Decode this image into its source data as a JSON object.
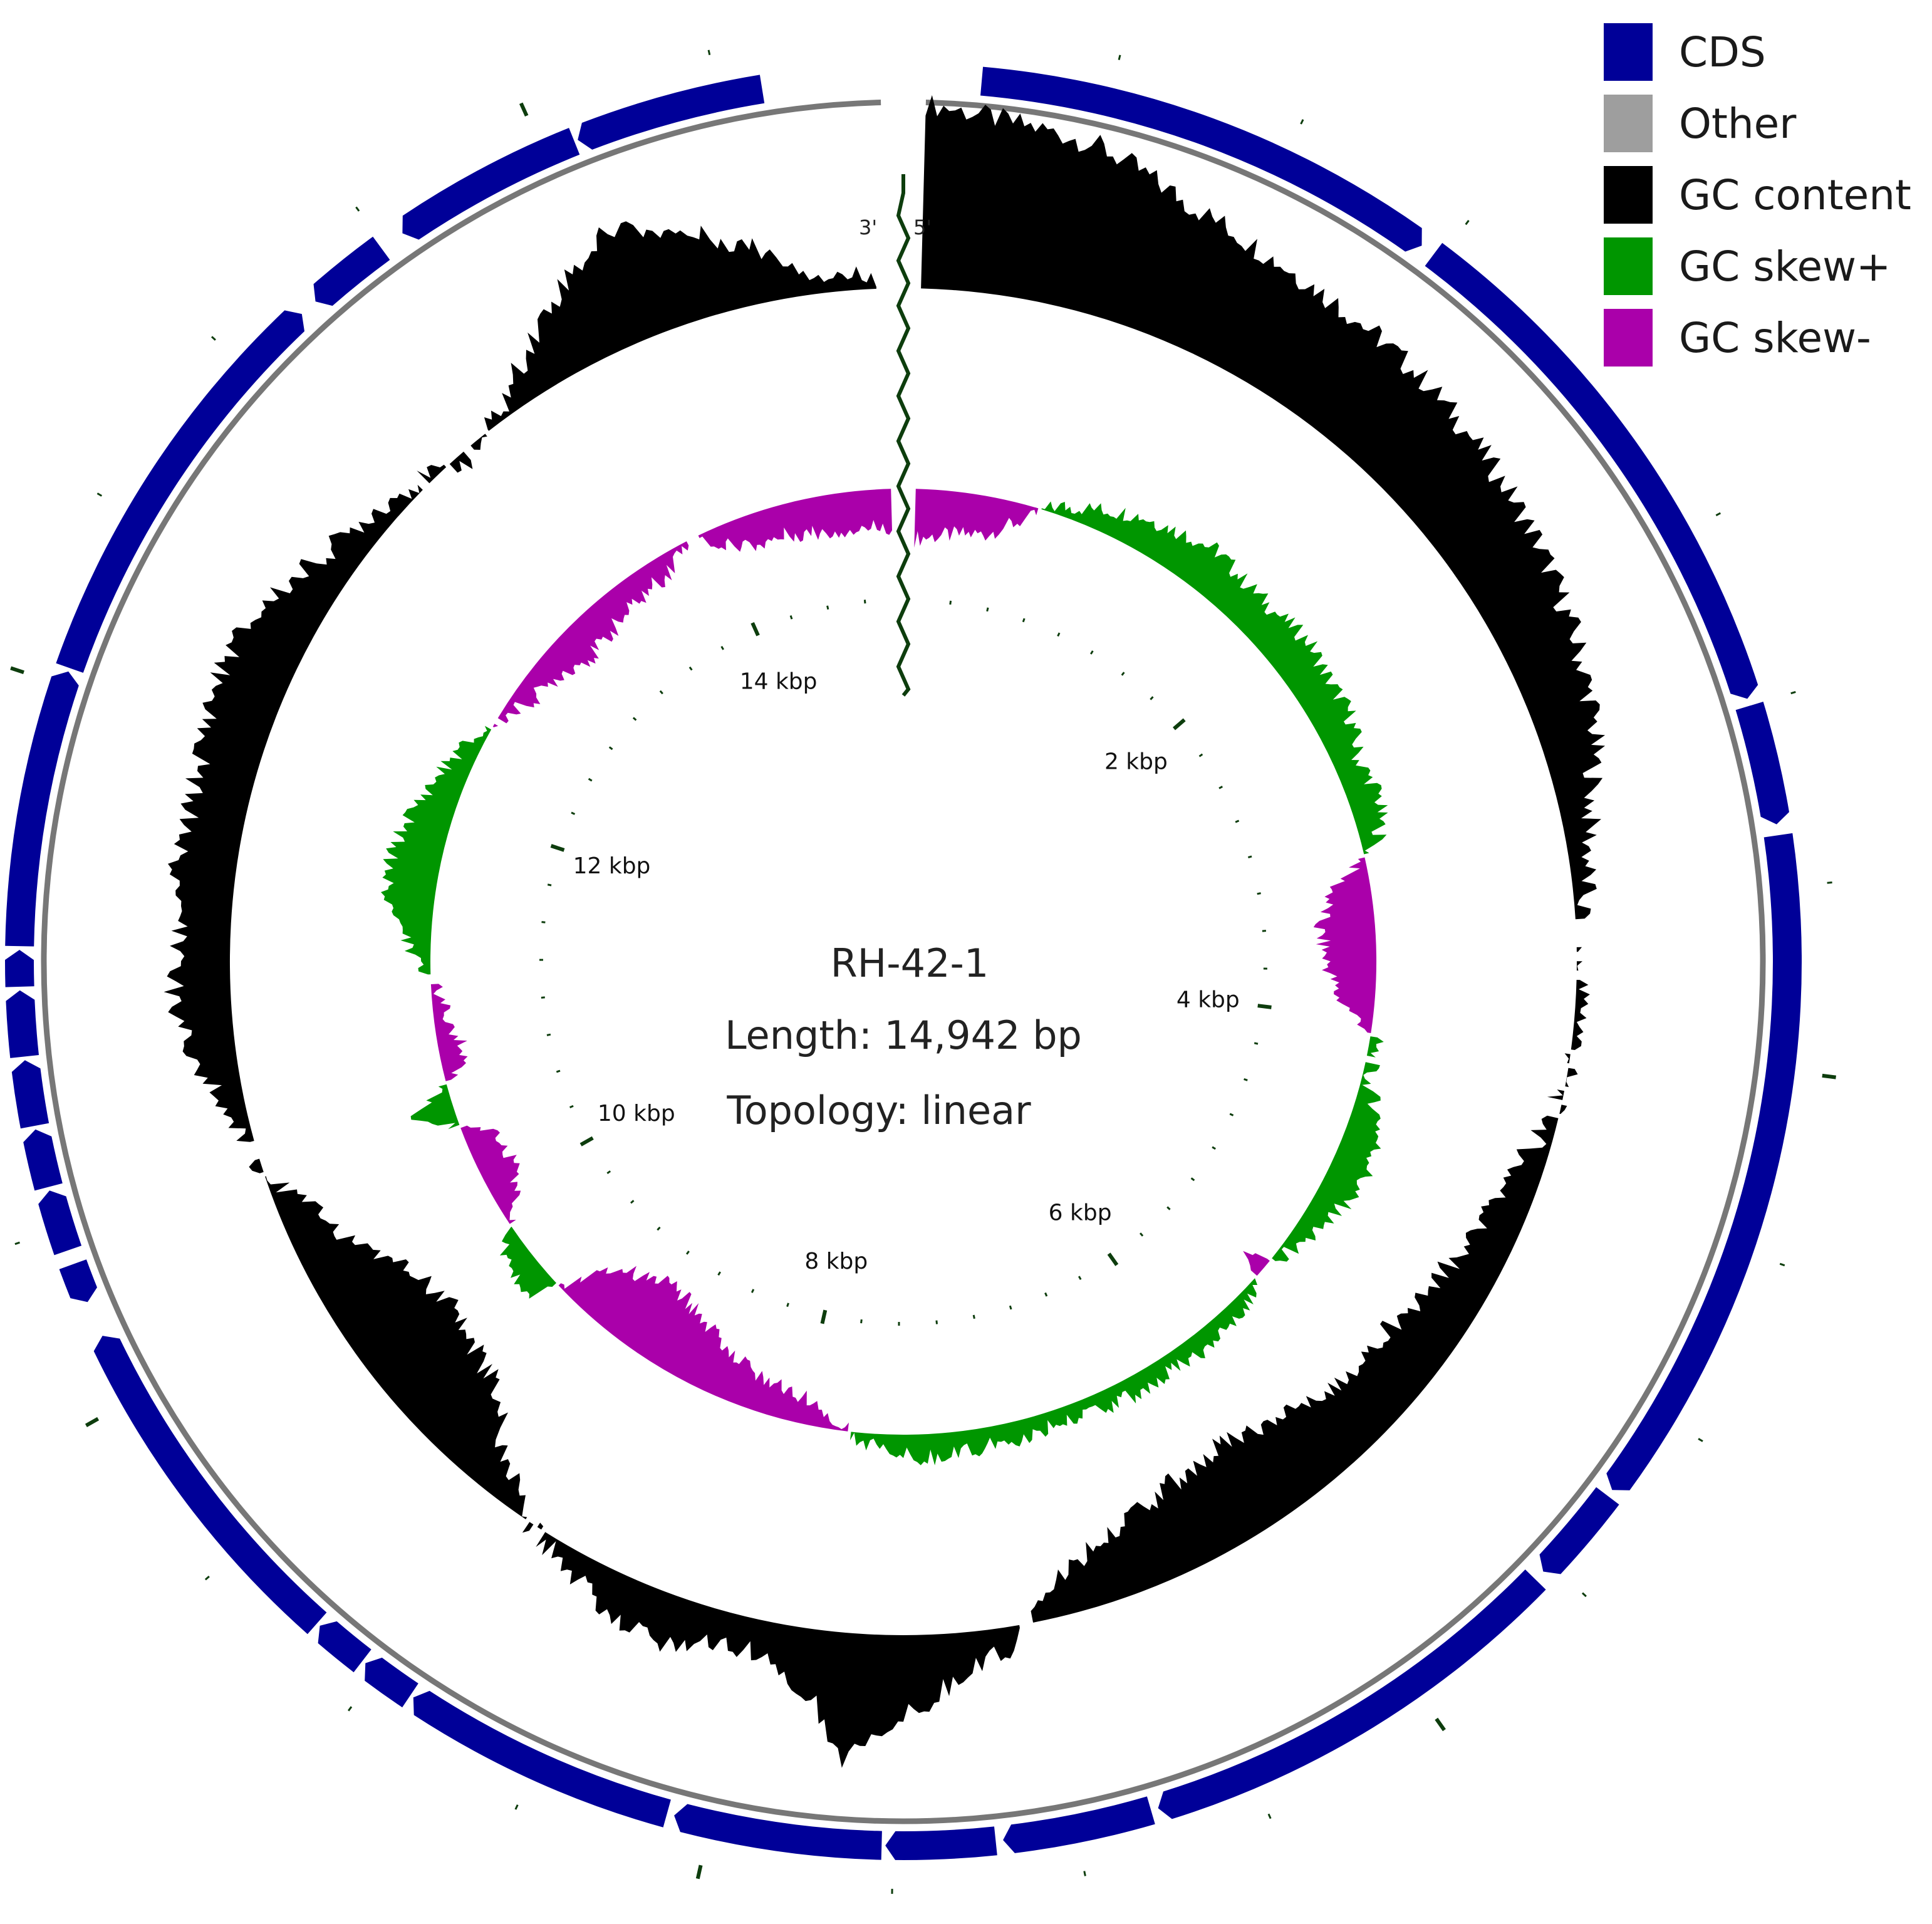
{
  "sequence_name": "RH-42-1",
  "length_text": "Length: 14,942  bp",
  "topology_text": "Topology: linear",
  "sequence_length_bp": 14942,
  "end_labels": {
    "five_prime": "5'",
    "three_prime": "3'"
  },
  "legend": [
    {
      "label": "CDS",
      "color": "#000098"
    },
    {
      "label": "Other",
      "color": "#9e9e9e"
    },
    {
      "label": "GC content",
      "color": "#000000"
    },
    {
      "label": "GC skew+",
      "color": "#009600"
    },
    {
      "label": "GC skew-",
      "color": "#aa00aa"
    }
  ],
  "tick_labels": [
    {
      "bp": 2000,
      "label": "2 kbp"
    },
    {
      "bp": 4000,
      "label": "4 kbp"
    },
    {
      "bp": 6000,
      "label": "6 kbp"
    },
    {
      "bp": 8000,
      "label": "8 kbp"
    },
    {
      "bp": 10000,
      "label": "10 kbp"
    },
    {
      "bp": 12000,
      "label": "12 kbp"
    },
    {
      "bp": 14000,
      "label": "14 kbp"
    }
  ],
  "features": [
    {
      "type": "CDS",
      "start": 150,
      "end": 1440,
      "strand": "+"
    },
    {
      "type": "CDS",
      "start": 1480,
      "end": 2980,
      "strand": "+"
    },
    {
      "type": "CDS",
      "start": 3000,
      "end": 3330,
      "strand": "+"
    },
    {
      "type": "CDS",
      "start": 3360,
      "end": 5240,
      "strand": "+"
    },
    {
      "type": "CDS",
      "start": 5260,
      "end": 5530,
      "strand": "+"
    },
    {
      "type": "CDS",
      "start": 5560,
      "end": 6770,
      "strand": "+"
    },
    {
      "type": "CDS",
      "start": 6790,
      "end": 7200,
      "strand": "+"
    },
    {
      "type": "CDS",
      "start": 7220,
      "end": 7520,
      "strand": "+"
    },
    {
      "type": "CDS",
      "start": 7530,
      "end": 8100,
      "strand": "+"
    },
    {
      "type": "CDS",
      "start": 8120,
      "end": 8880,
      "strand": "+"
    },
    {
      "type": "CDS",
      "start": 8890,
      "end": 9040,
      "strand": "+"
    },
    {
      "type": "CDS",
      "start": 9050,
      "end": 9200,
      "strand": "+"
    },
    {
      "type": "CDS",
      "start": 9210,
      "end": 10190,
      "strand": "+"
    },
    {
      "type": "CDS",
      "start": 10290,
      "end": 10400,
      "strand": "-"
    },
    {
      "type": "CDS",
      "start": 10440,
      "end": 10610,
      "strand": "+"
    },
    {
      "type": "CDS",
      "start": 10620,
      "end": 10780,
      "strand": "+"
    },
    {
      "type": "CDS",
      "start": 10790,
      "end": 10970,
      "strand": "+"
    },
    {
      "type": "CDS",
      "start": 10980,
      "end": 11160,
      "strand": "+"
    },
    {
      "type": "CDS",
      "start": 11170,
      "end": 11270,
      "strand": "+"
    },
    {
      "type": "CDS",
      "start": 11280,
      "end": 12040,
      "strand": "+"
    },
    {
      "type": "CDS",
      "start": 12050,
      "end": 13210,
      "strand": "+"
    },
    {
      "type": "CDS",
      "start": 13260,
      "end": 13490,
      "strand": "-"
    },
    {
      "type": "CDS",
      "start": 13560,
      "end": 14090,
      "strand": "-"
    },
    {
      "type": "CDS",
      "start": 14100,
      "end": 14620,
      "strand": "-"
    }
  ],
  "gc_content_deviation": [
    [
      0,
      0.95
    ],
    [
      200,
      0.9
    ],
    [
      500,
      0.85
    ],
    [
      800,
      0.7
    ],
    [
      1100,
      0.62
    ],
    [
      1400,
      0.58
    ],
    [
      1700,
      0.55
    ],
    [
      2000,
      0.5
    ],
    [
      2300,
      0.45
    ],
    [
      2600,
      0.38
    ],
    [
      2900,
      0.3
    ],
    [
      3200,
      0.15
    ],
    [
      3500,
      0.05
    ],
    [
      3700,
      0.0
    ],
    [
      3900,
      0.05
    ],
    [
      4100,
      0.0
    ],
    [
      4300,
      -0.05
    ],
    [
      4500,
      -0.15
    ],
    [
      4700,
      -0.2
    ],
    [
      4900,
      -0.25
    ],
    [
      5100,
      -0.3
    ],
    [
      5300,
      -0.35
    ],
    [
      5500,
      -0.35
    ],
    [
      5700,
      -0.4
    ],
    [
      5900,
      -0.45
    ],
    [
      6100,
      -0.5
    ],
    [
      6300,
      -0.45
    ],
    [
      6500,
      -0.4
    ],
    [
      6700,
      -0.3
    ],
    [
      6900,
      -0.2
    ],
    [
      7100,
      0.1
    ],
    [
      7300,
      0.25
    ],
    [
      7500,
      0.45
    ],
    [
      7650,
      0.65
    ],
    [
      7750,
      0.4
    ],
    [
      7900,
      0.2
    ],
    [
      8100,
      0.15
    ],
    [
      8300,
      0.25
    ],
    [
      8500,
      0.2
    ],
    [
      8700,
      0.1
    ],
    [
      8900,
      0.0
    ],
    [
      9100,
      -0.2
    ],
    [
      9300,
      -0.45
    ],
    [
      9500,
      -0.5
    ],
    [
      9700,
      -0.55
    ],
    [
      9900,
      -0.5
    ],
    [
      10100,
      -0.3
    ],
    [
      10300,
      -0.15
    ],
    [
      10500,
      0.0
    ],
    [
      10700,
      0.1
    ],
    [
      10900,
      0.2
    ],
    [
      11100,
      0.3
    ],
    [
      11300,
      0.25
    ],
    [
      11500,
      0.3
    ],
    [
      11700,
      0.28
    ],
    [
      11900,
      0.3
    ],
    [
      12100,
      0.35
    ],
    [
      12300,
      0.35
    ],
    [
      12500,
      0.28
    ],
    [
      12700,
      0.18
    ],
    [
      12900,
      0.12
    ],
    [
      13100,
      0.05
    ],
    [
      13300,
      -0.05
    ],
    [
      13500,
      0.05
    ],
    [
      13700,
      0.25
    ],
    [
      13900,
      0.45
    ],
    [
      14100,
      0.6
    ],
    [
      14300,
      0.45
    ],
    [
      14500,
      0.3
    ],
    [
      14700,
      0.1
    ],
    [
      14942,
      0.05
    ]
  ],
  "gc_skew": [
    [
      0,
      -0.4
    ],
    [
      200,
      -0.35
    ],
    [
      400,
      -0.3
    ],
    [
      600,
      -0.1
    ],
    [
      700,
      0.05
    ],
    [
      900,
      0.15
    ],
    [
      1100,
      0.25
    ],
    [
      1300,
      0.3
    ],
    [
      1500,
      0.35
    ],
    [
      1700,
      0.3
    ],
    [
      1900,
      0.3
    ],
    [
      2100,
      0.35
    ],
    [
      2300,
      0.3
    ],
    [
      2500,
      0.3
    ],
    [
      2700,
      0.2
    ],
    [
      2900,
      0.25
    ],
    [
      3100,
      0.15
    ],
    [
      3300,
      -0.3
    ],
    [
      3500,
      -0.45
    ],
    [
      3700,
      -0.4
    ],
    [
      3900,
      -0.3
    ],
    [
      4100,
      0.05
    ],
    [
      4300,
      0.05
    ],
    [
      4500,
      0.25
    ],
    [
      4700,
      0.3
    ],
    [
      4900,
      0.25
    ],
    [
      5100,
      0.15
    ],
    [
      5300,
      0.05
    ],
    [
      5400,
      -0.2
    ],
    [
      5500,
      0.05
    ],
    [
      5700,
      0.12
    ],
    [
      5900,
      0.15
    ],
    [
      6100,
      0.12
    ],
    [
      6300,
      0.15
    ],
    [
      6500,
      0.12
    ],
    [
      6700,
      0.12
    ],
    [
      6900,
      0.15
    ],
    [
      7100,
      0.15
    ],
    [
      7300,
      0.2
    ],
    [
      7500,
      0.15
    ],
    [
      7700,
      0.05
    ],
    [
      7900,
      -0.15
    ],
    [
      8100,
      -0.25
    ],
    [
      8300,
      -0.3
    ],
    [
      8500,
      -0.4
    ],
    [
      8700,
      -0.5
    ],
    [
      8900,
      -0.6
    ],
    [
      9100,
      -0.55
    ],
    [
      9300,
      -0.4
    ],
    [
      9500,
      0.25
    ],
    [
      9700,
      0.2
    ],
    [
      9900,
      -0.15
    ],
    [
      10100,
      -0.3
    ],
    [
      10300,
      -0.2
    ],
    [
      10500,
      0.3
    ],
    [
      10700,
      -0.2
    ],
    [
      10900,
      -0.15
    ],
    [
      11100,
      -0.05
    ],
    [
      11200,
      0.05
    ],
    [
      11500,
      0.35
    ],
    [
      11700,
      0.4
    ],
    [
      11900,
      0.35
    ],
    [
      12100,
      0.25
    ],
    [
      12300,
      0.15
    ],
    [
      12500,
      0.0
    ],
    [
      12700,
      -0.15
    ],
    [
      12900,
      -0.2
    ],
    [
      13100,
      -0.3
    ],
    [
      13300,
      -0.25
    ],
    [
      13500,
      -0.2
    ],
    [
      13700,
      -0.15
    ],
    [
      13900,
      0.05
    ],
    [
      14000,
      -0.15
    ],
    [
      14200,
      -0.25
    ],
    [
      14400,
      -0.25
    ],
    [
      14600,
      -0.3
    ],
    [
      14800,
      -0.3
    ],
    [
      14942,
      -0.3
    ]
  ]
}
